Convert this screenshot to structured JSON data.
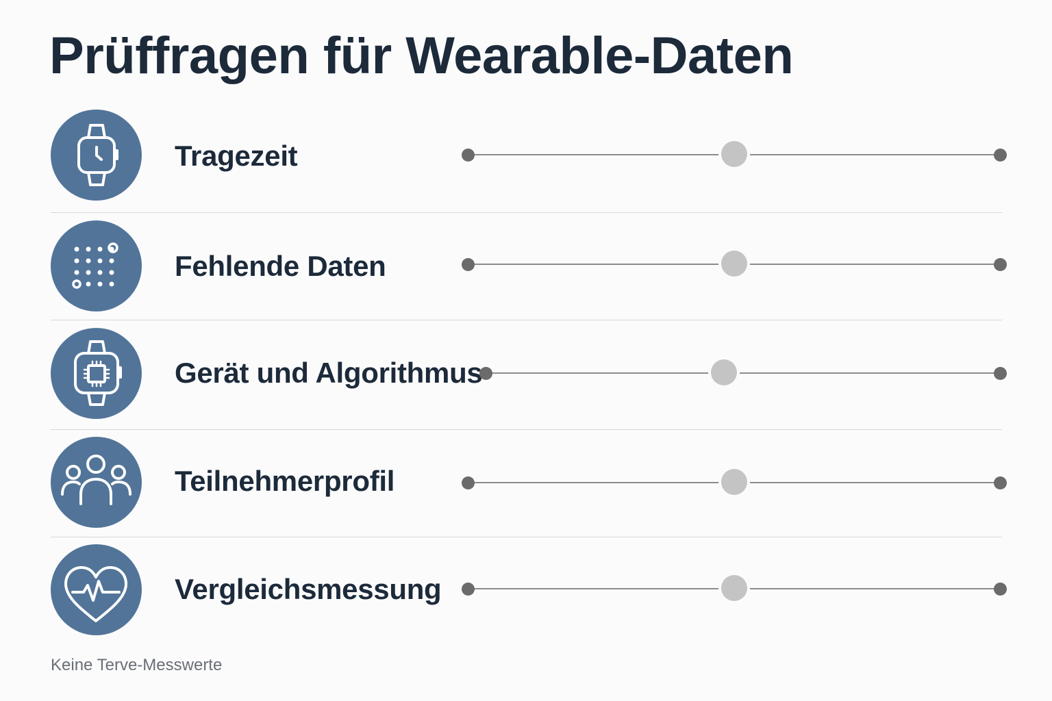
{
  "title": "Prüffragen für Wearable-Daten",
  "footnote": "Keine Terve-Messwerte",
  "colors": {
    "icon_circle": "#527499",
    "title_text": "#1c2a3a",
    "track": "#8b8b8b",
    "end_dot": "#6b6b6b",
    "knob": "#c4c4c4",
    "divider": "#d6d8db"
  },
  "rows": [
    {
      "label": "Tragezeit",
      "icon": "smartwatch-icon",
      "slider_value": 0.5
    },
    {
      "label": "Fehlende Daten",
      "icon": "dot-grid-icon",
      "slider_value": 0.5
    },
    {
      "label": "Gerät und Algorithmus",
      "icon": "smartwatch-chip-icon",
      "slider_value": 0.5
    },
    {
      "label": "Teilnehmerprofil",
      "icon": "people-group-icon",
      "slider_value": 0.5
    },
    {
      "label": "Vergleichsmessung",
      "icon": "heart-pulse-icon",
      "slider_value": 0.5
    }
  ]
}
